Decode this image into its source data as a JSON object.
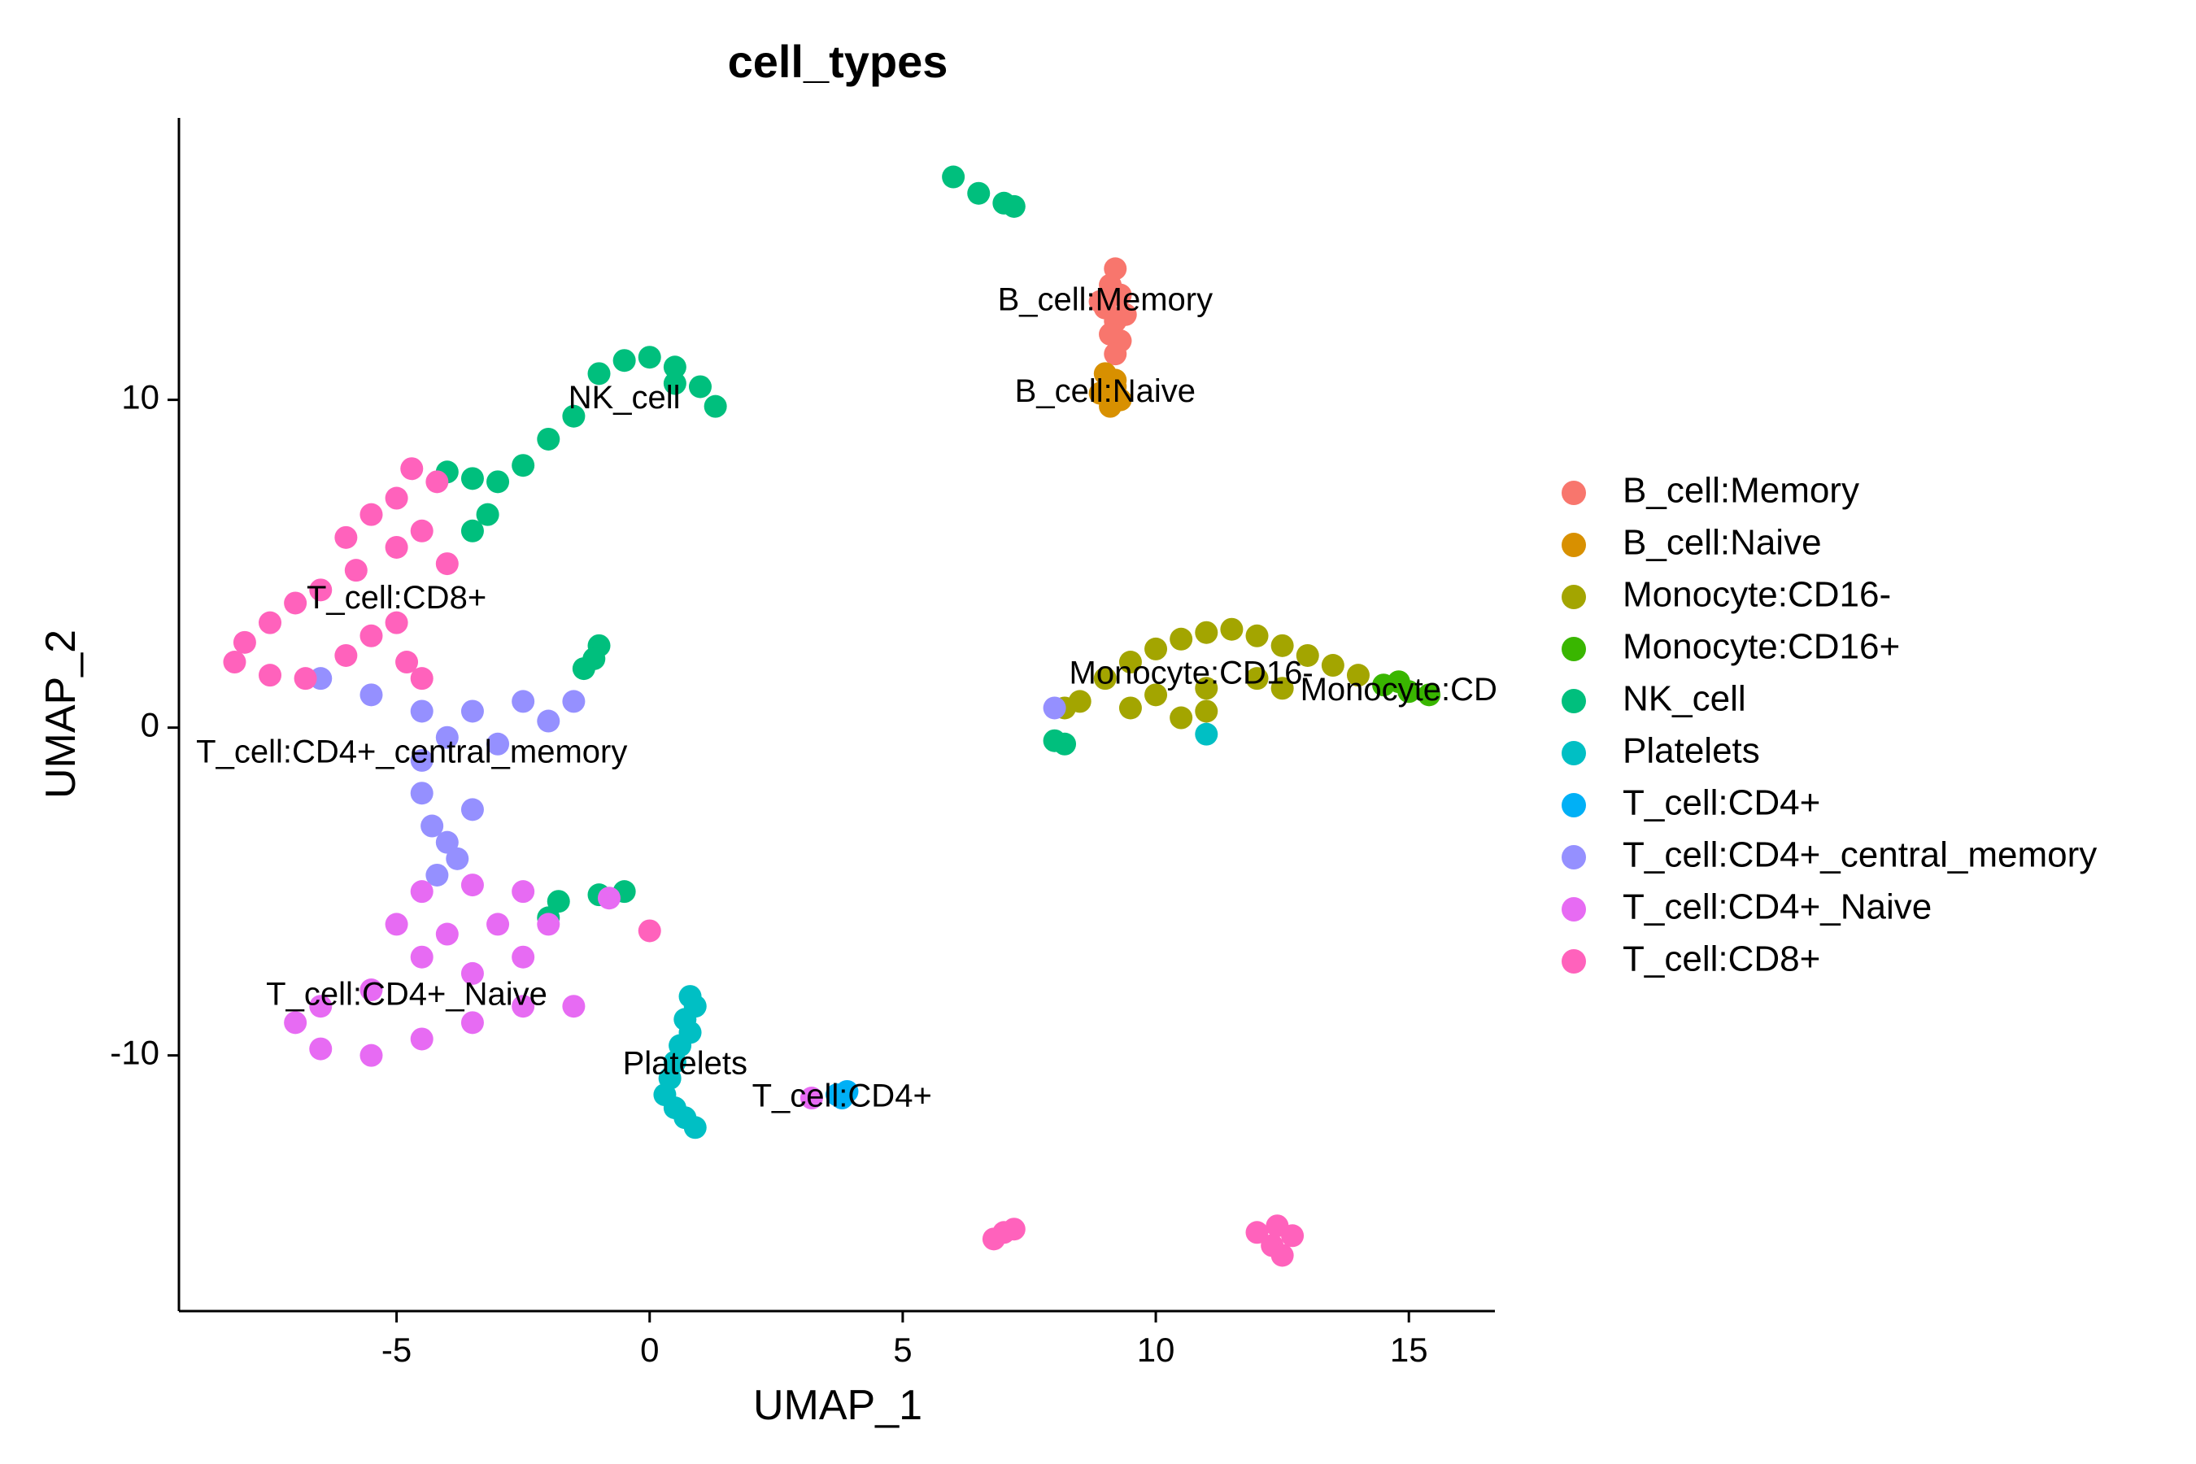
{
  "chart_data": {
    "type": "scatter",
    "title": "cell_types",
    "xlabel": "UMAP_1",
    "ylabel": "UMAP_2",
    "xlim": [
      -9.3,
      16.7
    ],
    "ylim": [
      -17.8,
      18.6
    ],
    "xticks": [
      -5,
      0,
      5,
      10,
      15
    ],
    "xtick_labels": [
      "-5",
      "0",
      "5",
      "10",
      "15"
    ],
    "yticks": [
      -10,
      0,
      10
    ],
    "ytick_labels": [
      "-10",
      "0",
      "10"
    ],
    "grid": false,
    "legend_position": "right",
    "series": [
      {
        "name": "B_cell:Memory",
        "color": "#F8766D",
        "points": [
          [
            9.2,
            14.0
          ],
          [
            9.1,
            13.5
          ],
          [
            9.3,
            13.2
          ],
          [
            9.0,
            12.8
          ],
          [
            9.2,
            12.4
          ],
          [
            9.1,
            12.0
          ],
          [
            9.3,
            11.8
          ],
          [
            8.9,
            13.0
          ],
          [
            9.4,
            12.6
          ],
          [
            9.2,
            11.4
          ]
        ],
        "label": {
          "text": "B_cell:Memory",
          "x": 9.0,
          "y": 13.0
        }
      },
      {
        "name": "B_cell:Naive",
        "color": "#D89000",
        "points": [
          [
            9.0,
            10.8
          ],
          [
            9.2,
            10.4
          ],
          [
            8.9,
            10.2
          ],
          [
            9.3,
            10.0
          ],
          [
            9.1,
            9.8
          ],
          [
            9.2,
            10.6
          ]
        ],
        "label": {
          "text": "B_cell:Naive",
          "x": 9.0,
          "y": 10.2
        }
      },
      {
        "name": "Monocyte:CD16-",
        "color": "#A3A500",
        "points": [
          [
            8.5,
            0.8
          ],
          [
            9.0,
            1.5
          ],
          [
            9.5,
            2.0
          ],
          [
            10.0,
            2.4
          ],
          [
            10.5,
            2.7
          ],
          [
            11.0,
            2.9
          ],
          [
            11.5,
            3.0
          ],
          [
            12.0,
            2.8
          ],
          [
            12.5,
            2.5
          ],
          [
            13.0,
            2.2
          ],
          [
            13.5,
            1.9
          ],
          [
            14.0,
            1.6
          ],
          [
            10.0,
            1.0
          ],
          [
            11.0,
            1.2
          ],
          [
            12.0,
            1.5
          ],
          [
            9.5,
            0.6
          ],
          [
            10.5,
            0.3
          ],
          [
            11.0,
            0.5
          ],
          [
            12.5,
            1.2
          ],
          [
            8.2,
            0.6
          ]
        ],
        "label": {
          "text": "Monocyte:CD16-",
          "x": 10.7,
          "y": 1.6
        }
      },
      {
        "name": "Monocyte:CD16+",
        "color": "#39B600",
        "points": [
          [
            14.5,
            1.3
          ],
          [
            15.0,
            1.1
          ],
          [
            15.4,
            1.0
          ],
          [
            14.8,
            1.4
          ]
        ],
        "label": {
          "text": "Monocyte:CD",
          "x": 14.8,
          "y": 1.1
        }
      },
      {
        "name": "NK_cell",
        "color": "#00BF7D",
        "points": [
          [
            -1.0,
            10.8
          ],
          [
            -0.5,
            11.2
          ],
          [
            0.0,
            11.3
          ],
          [
            0.5,
            11.0
          ],
          [
            1.0,
            10.4
          ],
          [
            1.3,
            9.8
          ],
          [
            -1.5,
            9.5
          ],
          [
            -2.0,
            8.8
          ],
          [
            -2.5,
            8.0
          ],
          [
            -3.0,
            7.5
          ],
          [
            -3.5,
            7.6
          ],
          [
            -4.0,
            7.8
          ],
          [
            -3.2,
            6.5
          ],
          [
            -3.5,
            6.0
          ],
          [
            0.5,
            10.5
          ],
          [
            6.0,
            16.8
          ],
          [
            6.5,
            16.3
          ],
          [
            7.0,
            16.0
          ],
          [
            7.2,
            15.9
          ],
          [
            -1.0,
            2.5
          ],
          [
            -1.1,
            2.1
          ],
          [
            -1.3,
            1.8
          ],
          [
            -1.8,
            -5.3
          ],
          [
            -1.0,
            -5.1
          ],
          [
            -0.5,
            -5.0
          ],
          [
            -2.0,
            -5.8
          ],
          [
            8.2,
            -0.5
          ],
          [
            8.0,
            -0.4
          ]
        ],
        "label": {
          "text": "NK_cell",
          "x": -0.5,
          "y": 10.0
        }
      },
      {
        "name": "Platelets",
        "color": "#00BFC4",
        "points": [
          [
            0.8,
            -8.2
          ],
          [
            0.9,
            -8.5
          ],
          [
            0.7,
            -8.9
          ],
          [
            0.8,
            -9.3
          ],
          [
            0.6,
            -9.7
          ],
          [
            0.5,
            -10.2
          ],
          [
            0.4,
            -10.7
          ],
          [
            0.3,
            -11.2
          ],
          [
            0.5,
            -11.6
          ],
          [
            0.7,
            -11.9
          ],
          [
            0.9,
            -12.2
          ],
          [
            11.0,
            -0.2
          ]
        ],
        "label": {
          "text": "Platelets",
          "x": 0.7,
          "y": -10.3
        }
      },
      {
        "name": "T_cell:CD4+",
        "color": "#00B0F6",
        "points": [
          [
            3.8,
            -11.3
          ],
          [
            3.9,
            -11.1
          ],
          [
            3.7,
            -11.2
          ]
        ],
        "label": {
          "text": "T_cell:CD4+",
          "x": 3.8,
          "y": -11.3
        }
      },
      {
        "name": "T_cell:CD4+_central_memory",
        "color": "#9590FF",
        "points": [
          [
            -6.5,
            1.5
          ],
          [
            -5.5,
            1.0
          ],
          [
            -4.5,
            0.5
          ],
          [
            -3.5,
            0.5
          ],
          [
            -2.5,
            0.8
          ],
          [
            -2.0,
            0.2
          ],
          [
            -3.0,
            -0.5
          ],
          [
            -4.0,
            -0.3
          ],
          [
            -4.5,
            -1.0
          ],
          [
            -4.5,
            -2.0
          ],
          [
            -4.3,
            -3.0
          ],
          [
            -4.0,
            -3.5
          ],
          [
            -3.8,
            -4.0
          ],
          [
            -4.2,
            -4.5
          ],
          [
            -3.5,
            -2.5
          ],
          [
            -1.5,
            0.8
          ],
          [
            8.0,
            0.6
          ]
        ],
        "label": {
          "text": "T_cell:CD4+_central_memory",
          "x": -4.7,
          "y": -0.8
        }
      },
      {
        "name": "T_cell:CD4+_Naive",
        "color": "#E76BF3",
        "points": [
          [
            -4.5,
            -5.0
          ],
          [
            -3.5,
            -4.8
          ],
          [
            -2.5,
            -5.0
          ],
          [
            -2.0,
            -6.0
          ],
          [
            -2.5,
            -7.0
          ],
          [
            -3.5,
            -7.5
          ],
          [
            -4.5,
            -7.0
          ],
          [
            -5.0,
            -6.0
          ],
          [
            -5.5,
            -8.0
          ],
          [
            -6.5,
            -8.5
          ],
          [
            -7.0,
            -9.0
          ],
          [
            -6.5,
            -9.8
          ],
          [
            -5.5,
            -10.0
          ],
          [
            -4.5,
            -9.5
          ],
          [
            -3.5,
            -9.0
          ],
          [
            -2.5,
            -8.5
          ],
          [
            -1.5,
            -8.5
          ],
          [
            -4.0,
            -6.3
          ],
          [
            -3.0,
            -6.0
          ],
          [
            -0.8,
            -5.2
          ],
          [
            3.2,
            -11.3
          ]
        ],
        "label": {
          "text": "T_cell:CD4+_Naive",
          "x": -4.8,
          "y": -8.2
        }
      },
      {
        "name": "T_cell:CD8+",
        "color": "#FF62BC",
        "points": [
          [
            -4.7,
            7.9
          ],
          [
            -4.2,
            7.5
          ],
          [
            -5.0,
            7.0
          ],
          [
            -5.5,
            6.5
          ],
          [
            -6.0,
            5.8
          ],
          [
            -5.8,
            4.8
          ],
          [
            -5.0,
            5.5
          ],
          [
            -4.5,
            6.0
          ],
          [
            -4.0,
            5.0
          ],
          [
            -6.5,
            4.2
          ],
          [
            -7.0,
            3.8
          ],
          [
            -7.5,
            3.2
          ],
          [
            -8.0,
            2.6
          ],
          [
            -8.2,
            2.0
          ],
          [
            -7.5,
            1.6
          ],
          [
            -6.8,
            1.5
          ],
          [
            -6.0,
            2.2
          ],
          [
            -5.5,
            2.8
          ],
          [
            -5.0,
            3.2
          ],
          [
            -4.8,
            2.0
          ],
          [
            -4.5,
            1.5
          ],
          [
            6.8,
            -15.6
          ],
          [
            7.0,
            -15.4
          ],
          [
            7.2,
            -15.3
          ],
          [
            12.0,
            -15.4
          ],
          [
            12.3,
            -15.8
          ],
          [
            12.5,
            -16.1
          ],
          [
            12.7,
            -15.5
          ],
          [
            12.4,
            -15.2
          ],
          [
            0.0,
            -6.2
          ]
        ],
        "label": {
          "text": "T_cell:CD8+",
          "x": -5.0,
          "y": 3.9
        }
      }
    ]
  }
}
